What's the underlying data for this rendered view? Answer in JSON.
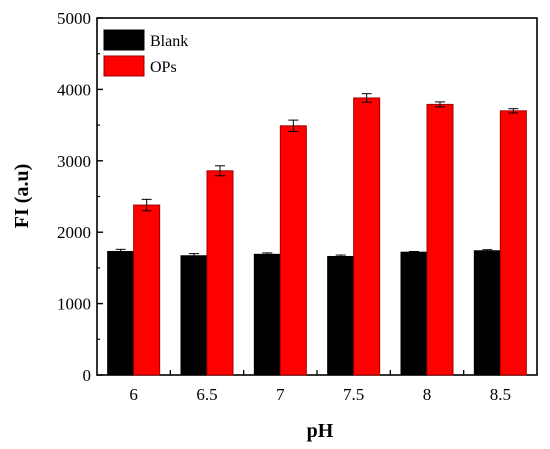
{
  "chart_data": {
    "type": "bar",
    "categories": [
      "6",
      "6.5",
      "7",
      "7.5",
      "8",
      "8.5"
    ],
    "series": [
      {
        "name": "Blank",
        "color": "#000000",
        "values": [
          1730,
          1670,
          1690,
          1660,
          1720,
          1740
        ],
        "errors": [
          30,
          30,
          20,
          20,
          10,
          15
        ]
      },
      {
        "name": "OPs",
        "color": "#ff0000",
        "edge_color": "#a00000",
        "values": [
          2380,
          2860,
          3490,
          3880,
          3790,
          3700
        ],
        "errors": [
          80,
          70,
          80,
          60,
          35,
          30
        ]
      }
    ],
    "xlabel": "pH",
    "ylabel": "FI (a.u)",
    "ylim": [
      0,
      5000
    ],
    "yticks": [
      "0",
      "1000",
      "2000",
      "3000",
      "4000",
      "5000"
    ],
    "legend": "top-left",
    "grid": false
  }
}
